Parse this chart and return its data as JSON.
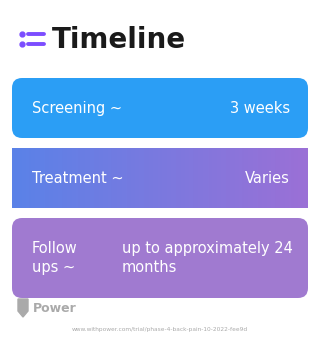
{
  "title": "Timeline",
  "title_fontsize": 20,
  "title_color": "#1a1a1a",
  "icon_color": "#7c4dff",
  "background_color": "#ffffff",
  "rows": [
    {
      "label": "Screening ~",
      "value": "3 weeks",
      "color": "#2b9ef5",
      "gradient_right": "#2b9ef5",
      "is_gradient": false,
      "text_color": "#ffffff",
      "two_line_label": false,
      "two_line_value": false
    },
    {
      "label": "Treatment ~",
      "value": "Varies",
      "color": "#5a82e8",
      "gradient_right": "#9b70d6",
      "is_gradient": true,
      "text_color": "#ffffff",
      "two_line_label": false,
      "two_line_value": false
    },
    {
      "label": "Follow\nups ~",
      "value": "up to approximately 24\nmonths",
      "color": "#a07ad0",
      "gradient_right": "#b585e0",
      "is_gradient": false,
      "text_color": "#ffffff",
      "two_line_label": true,
      "two_line_value": true
    }
  ],
  "footer_text": "Power",
  "footer_url": "www.withpower.com/trial/phase-4-back-pain-10-2022-fee9d",
  "footer_color": "#aaaaaa",
  "label_fontsize": 10.5,
  "value_fontsize": 10.5
}
